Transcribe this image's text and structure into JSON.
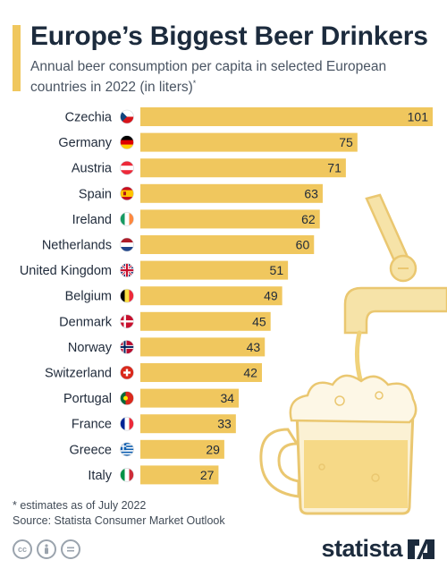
{
  "header": {
    "title": "Europe’s Biggest Beer Drinkers",
    "subtitle": "Annual beer consumption per capita in selected European countries in 2022 (in liters)",
    "subtitle_mark": "*"
  },
  "chart_data": {
    "type": "bar",
    "orientation": "horizontal",
    "title": "Europe’s Biggest Beer Drinkers",
    "subtitle": "Annual beer consumption per capita in selected European countries in 2022 (in liters)",
    "categories": [
      "Czechia",
      "Germany",
      "Austria",
      "Spain",
      "Ireland",
      "Netherlands",
      "United Kingdom",
      "Belgium",
      "Denmark",
      "Norway",
      "Switzerland",
      "Portugal",
      "France",
      "Greece",
      "Italy"
    ],
    "values": [
      101,
      75,
      71,
      63,
      62,
      60,
      51,
      49,
      45,
      43,
      42,
      34,
      33,
      29,
      27
    ],
    "flag_icons": [
      "flag-czechia-icon",
      "flag-germany-icon",
      "flag-austria-icon",
      "flag-spain-icon",
      "flag-ireland-icon",
      "flag-netherlands-icon",
      "flag-united-kingdom-icon",
      "flag-belgium-icon",
      "flag-denmark-icon",
      "flag-norway-icon",
      "flag-switzerland-icon",
      "flag-portugal-icon",
      "flag-france-icon",
      "flag-greece-icon",
      "flag-italy-icon"
    ],
    "xlim": [
      0,
      101
    ],
    "grid": false,
    "legend": "none",
    "data_labels": true,
    "bar_color": "#f0c75e"
  },
  "colors": {
    "bar": "#f0c75e",
    "accent": "#f0c75e",
    "title": "#1c2b3d",
    "illustration": "#f6e3a8"
  },
  "footer": {
    "footnote": "* estimates as of July 2022",
    "source": "Source: Statista Consumer Market Outlook",
    "license_icons": [
      "creative-commons-icon",
      "attribution-icon",
      "no-derivatives-icon"
    ],
    "brand": "statista"
  }
}
